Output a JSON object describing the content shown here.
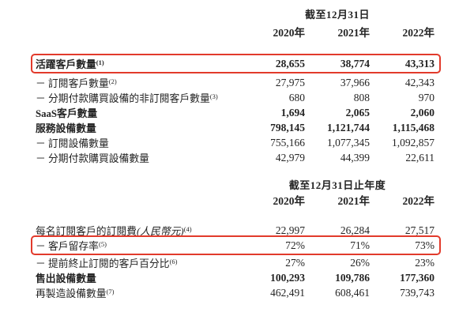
{
  "colors": {
    "highlight_red": "#e23a2b",
    "text": "#242424",
    "background": "#ffffff"
  },
  "table1": {
    "period_header": "截至12月31日",
    "years": [
      "2020年",
      "2021年",
      "2022年"
    ],
    "rows": [
      {
        "label": "活躍客戶數量",
        "sup": "(1)",
        "bold": true,
        "highlighted": true,
        "values": [
          "28,655",
          "38,774",
          "43,313"
        ]
      },
      {
        "label": "－ 訂閱客戶數量",
        "sup": "(2)",
        "values": [
          "27,975",
          "37,966",
          "42,343"
        ]
      },
      {
        "label": "－ 分期付款購買設備的非訂閱客戶數量",
        "sup": "(3)",
        "values": [
          "680",
          "808",
          "970"
        ]
      },
      {
        "label": "SaaS客戶數量",
        "bold": true,
        "values": [
          "1,694",
          "2,065",
          "2,060"
        ]
      },
      {
        "label": "服務設備數量",
        "bold": true,
        "values": [
          "798,145",
          "1,121,744",
          "1,115,468"
        ]
      },
      {
        "label": "－ 訂閱設備數量",
        "values": [
          "755,166",
          "1,077,345",
          "1,092,857"
        ]
      },
      {
        "label": "－ 分期付款購買設備數量",
        "values": [
          "42,979",
          "44,399",
          "22,611"
        ]
      }
    ]
  },
  "table2": {
    "period_header": "截至12月31日止年度",
    "years": [
      "2020年",
      "2021年",
      "2022年"
    ],
    "rows": [
      {
        "label": "每名訂閱客戶的訂閱費",
        "paren": "(人民幣元)",
        "sup": "(4)",
        "values": [
          "22,997",
          "26,284",
          "27,517"
        ]
      },
      {
        "label": "－ 客戶留存率",
        "sup": "(5)",
        "highlighted": true,
        "values": [
          "72%",
          "71%",
          "73%"
        ]
      },
      {
        "label": "－ 提前終止訂閱的客戶百分比",
        "sup": "(6)",
        "values": [
          "27%",
          "26%",
          "23%"
        ]
      },
      {
        "label": "售出設備數量",
        "bold": true,
        "values": [
          "100,293",
          "109,786",
          "177,360"
        ]
      },
      {
        "label": "再製造設備數量",
        "sup": "(7)",
        "values": [
          "462,491",
          "608,461",
          "739,743"
        ]
      }
    ]
  }
}
